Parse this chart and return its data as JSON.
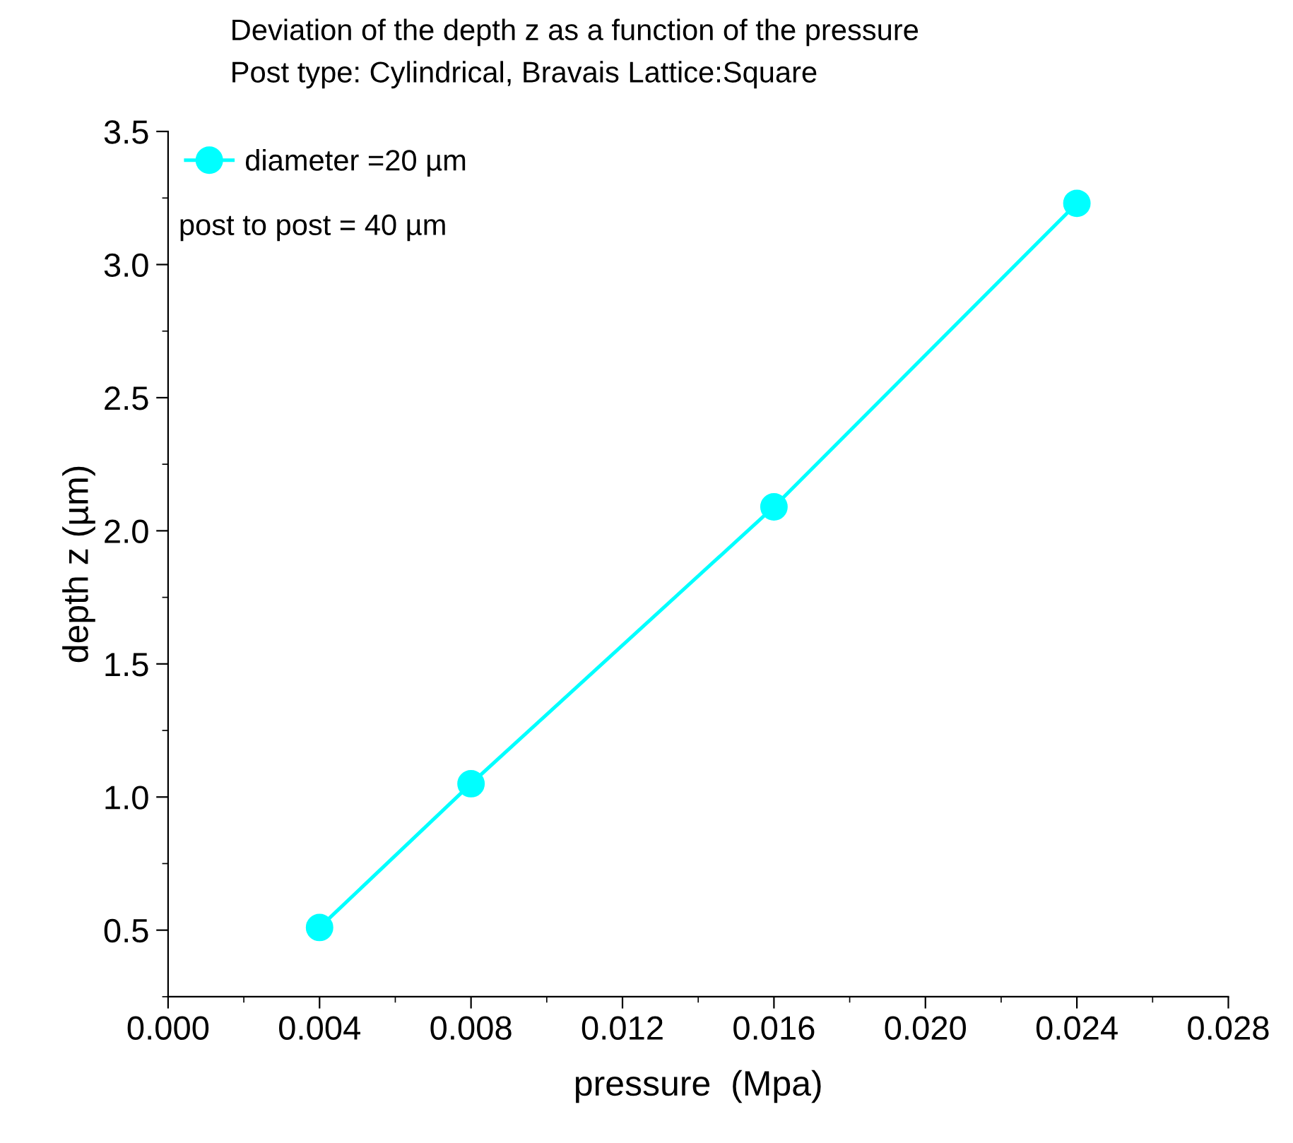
{
  "chart_data": {
    "type": "line",
    "title": "Deviation of the depth z as a function of the pressure",
    "subtitle": "Post type: Cylindrical, Bravais Lattice:Square",
    "xlabel": "pressure  (Mpa)",
    "ylabel": "depth z (µm)",
    "x": [
      0.004,
      0.008,
      0.016,
      0.024
    ],
    "series": [
      {
        "name": "diameter =20 µm",
        "color": "#00ffff",
        "values": [
          0.51,
          1.05,
          2.09,
          3.23
        ]
      }
    ],
    "annotations": [
      "post to post = 40 µm"
    ],
    "xlim": [
      0,
      0.028
    ],
    "xticks": [
      {
        "value": 0,
        "label": "0.000"
      },
      0.004,
      0.008,
      0.012,
      0.016,
      {
        "value": 0.02,
        "label": "0.020"
      },
      0.024,
      0.028
    ],
    "ylim": [
      0.25,
      3.5
    ],
    "yticks": [
      0.5,
      {
        "value": 1,
        "label": "1.0"
      },
      1.5,
      {
        "value": 2,
        "label": "2.0"
      },
      2.5,
      {
        "value": 3,
        "label": "3.0"
      },
      3.5
    ],
    "grid": false,
    "legend": "top left",
    "marker": "circle",
    "line_style": "solid"
  }
}
